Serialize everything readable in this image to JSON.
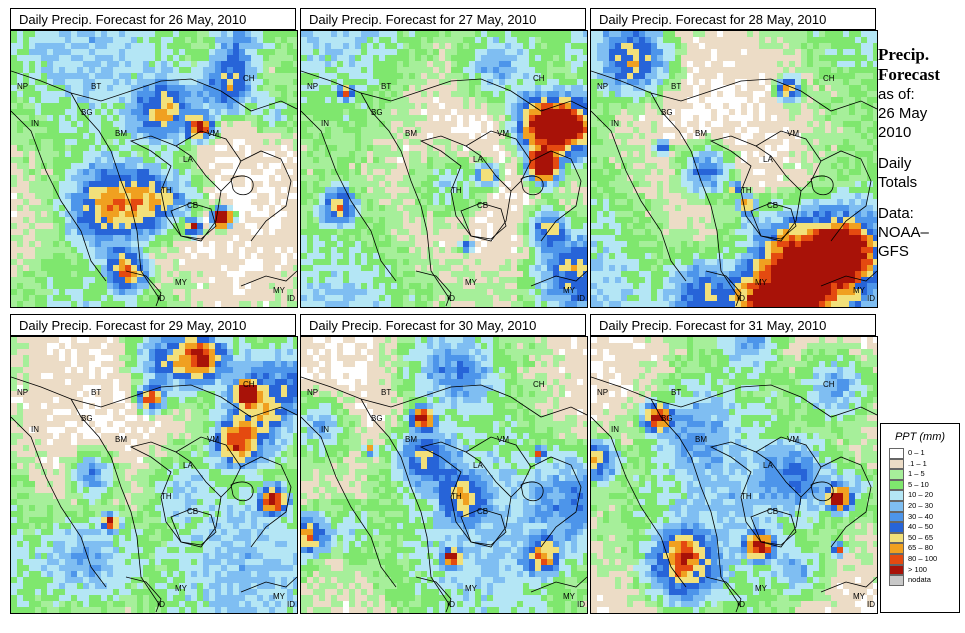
{
  "panels": [
    {
      "title": "Daily Precip. Forecast for  26 May, 2010",
      "seed": 11
    },
    {
      "title": "Daily Precip. Forecast for  27 May, 2010",
      "seed": 23
    },
    {
      "title": "Daily Precip. Forecast for  28 May, 2010",
      "seed": 37
    },
    {
      "title": "Daily Precip. Forecast for  29 May, 2010",
      "seed": 41
    },
    {
      "title": "Daily Precip. Forecast for  30 May, 2010",
      "seed": 53
    },
    {
      "title": "Daily Precip. Forecast for  31 May, 2010",
      "seed": 67
    }
  ],
  "map_labels": [
    "NP",
    "BT",
    "BG",
    "IN",
    "BM",
    "CH",
    "VM",
    "LA",
    "TH",
    "CB",
    "MY",
    "ID",
    "MY",
    "ID"
  ],
  "side": {
    "title_line1": "Precip.",
    "title_line2": "Forecast",
    "asof": "as of:",
    "date_line1": "26 May",
    "date_line2": "2010",
    "daily_line1": "Daily",
    "daily_line2": "Totals",
    "data_line1": "Data:",
    "data_line2": "NOAA–",
    "data_line3": "GFS"
  },
  "legend": {
    "title": "PPT (mm)",
    "items": [
      {
        "label": "0 – 1",
        "color": "#ffffff"
      },
      {
        "label": ".1 – 1",
        "color": "#ecdcc6"
      },
      {
        "label": "1 – 5",
        "color": "#a6ef9a"
      },
      {
        "label": "5 – 10",
        "color": "#7fe76e"
      },
      {
        "label": "10 – 20",
        "color": "#b4e6f5"
      },
      {
        "label": "20 – 30",
        "color": "#7fbef2"
      },
      {
        "label": "30 – 40",
        "color": "#4d95ea"
      },
      {
        "label": "40 – 50",
        "color": "#2764d8"
      },
      {
        "label": "50 – 65",
        "color": "#f2e07a"
      },
      {
        "label": "65 – 80",
        "color": "#f0a020"
      },
      {
        "label": "80 – 100",
        "color": "#e44a10"
      },
      {
        "label": "> 100",
        "color": "#a81208"
      },
      {
        "label": "nodata",
        "color": "#c8c8c8"
      }
    ]
  }
}
